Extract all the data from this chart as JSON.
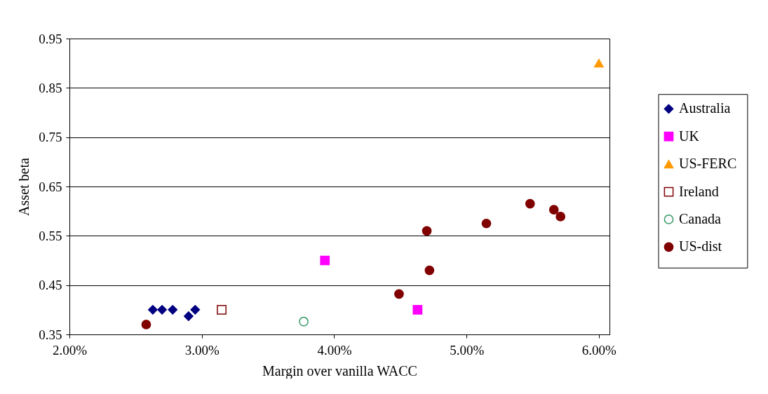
{
  "chart_data": {
    "type": "scatter",
    "xlabel": "Margin over vanilla WACC",
    "ylabel": "Asset beta",
    "xlim": [
      2,
      6.08
    ],
    "xticks": [
      {
        "value": 2,
        "label": "2.00%"
      },
      {
        "value": 3,
        "label": "3.00%"
      },
      {
        "value": 4,
        "label": "4.00%"
      },
      {
        "value": 5,
        "label": "5.00%"
      },
      {
        "value": 6,
        "label": "6.00%"
      }
    ],
    "ylim": [
      0.35,
      0.95
    ],
    "yticks": [
      0.35,
      0.45,
      0.55,
      0.65,
      0.75,
      0.85,
      0.95
    ],
    "grid": "y",
    "legend": "right",
    "series": [
      {
        "name": "Australia",
        "color": "#000080",
        "marker": "diamond",
        "x": [
          2.63,
          2.7,
          2.78,
          2.9,
          2.95
        ],
        "values": [
          0.4,
          0.4,
          0.4,
          0.387,
          0.4
        ]
      },
      {
        "name": "UK",
        "color": "#ff00ff",
        "marker": "square",
        "x": [
          3.93,
          4.63
        ],
        "values": [
          0.5,
          0.4
        ]
      },
      {
        "name": "US-FERC",
        "color": "#ff9900",
        "marker": "triangle",
        "x": [
          6.0
        ],
        "values": [
          0.9
        ]
      },
      {
        "name": "Ireland",
        "color": "#800000",
        "marker": "square-open",
        "x": [
          3.15
        ],
        "values": [
          0.4
        ]
      },
      {
        "name": "Canada",
        "color": "#339966",
        "marker": "circle-open",
        "x": [
          3.77
        ],
        "values": [
          0.376
        ]
      },
      {
        "name": "US-dist",
        "color": "#800000",
        "marker": "circle",
        "x": [
          2.58,
          4.49,
          4.7,
          4.72,
          5.15,
          5.48,
          5.66,
          5.71
        ],
        "values": [
          0.37,
          0.432,
          0.56,
          0.48,
          0.575,
          0.615,
          0.603,
          0.589
        ]
      }
    ]
  }
}
